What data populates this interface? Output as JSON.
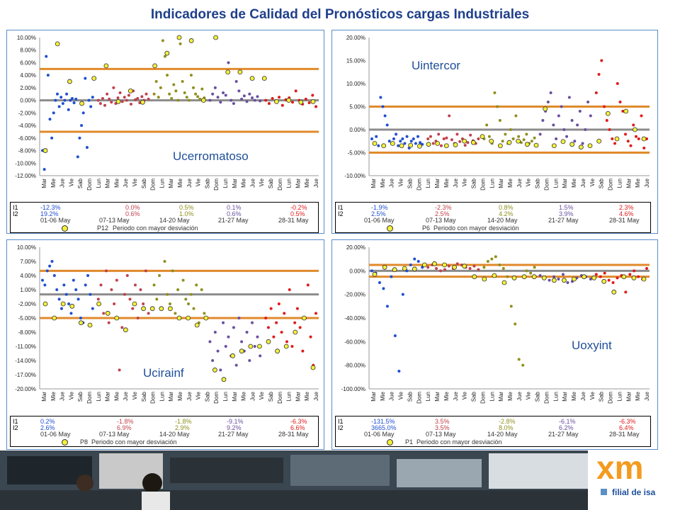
{
  "title": "Indicadores de Calidad del Pronósticos cargas Industriales",
  "period_note": "Periodo con mayor desviación",
  "brand": {
    "logo_text": "xm",
    "tagline": "filial de isa",
    "logo_color": "#f39b1f"
  },
  "colors": {
    "week1": "#1f4fd1",
    "week2": "#c0414c",
    "week3": "#8f8f1f",
    "week4": "#6a4fa0",
    "week5": "#e01b1b",
    "band": "#e08a2b",
    "zero": "#8c8c8c",
    "period_marker": "#f4f03a"
  },
  "weeks": [
    "01-06 May",
    "07-13 May",
    "14-20 May",
    "21-27 May",
    "28-31 May"
  ],
  "x_tick_labels": [
    "Mar",
    "Mie",
    "Jue",
    "Vie",
    "Sab",
    "Dom",
    "Lun",
    "Mar",
    "Mie",
    "Jue",
    "Vie",
    "Sab",
    "Dom",
    "Lun",
    "Mar",
    "Mie",
    "Jue",
    "Vie",
    "Sab",
    "Dom",
    "Lun",
    "Mar",
    "Mie",
    "Jue",
    "Vie",
    "Sab",
    "Dom",
    "Lun",
    "Mar",
    "Mie",
    "Jue"
  ],
  "panels": [
    {
      "label": "Ucerromatoso",
      "period": "P12",
      "I1": [
        "-12.3%",
        "0.0%",
        "0.5%",
        "0.1%",
        "-0.2%"
      ],
      "I2": [
        "19.2%",
        "0.6%",
        "1.0%",
        "0.6%",
        "0.5%"
      ]
    },
    {
      "label": "Uintercor",
      "period": "P6",
      "I1": [
        "-1.9%",
        "-2.3%",
        "0.8%",
        "1.5%",
        "2.3%"
      ],
      "I2": [
        "2.5%",
        "2.5%",
        "4.2%",
        "3.9%",
        "4.6%"
      ]
    },
    {
      "label": "Ucirainf",
      "period": "P8",
      "I1": [
        "0.2%",
        "-1.8%",
        "-1.8%",
        "-9.1%",
        "-6.3%"
      ],
      "I2": [
        "2.6%",
        "6.9%",
        "2.9%",
        "9.2%",
        "6.6%"
      ]
    },
    {
      "label": "Uoxyint",
      "period": "P1",
      "I1": [
        "-131.5%",
        "3.5%",
        "-2.8%",
        "-6.1%",
        "-6.3%"
      ],
      "I2": [
        "3665.0%",
        "3.5%",
        "8.0%",
        "6.2%",
        "6.4%"
      ]
    }
  ],
  "chart_data": [
    {
      "type": "scatter",
      "title": "Ucerromatoso",
      "yticks": [
        "10.00%",
        "8.00%",
        "6.00%",
        "4.00%",
        "2.00%",
        "0.00%",
        "-2.00%",
        "-4.00%",
        "-6.00%",
        "-8.00%",
        "-10.00%",
        "-12.00%"
      ],
      "ylim": [
        -12,
        10
      ],
      "bands": [
        5,
        -5
      ],
      "series": [
        {
          "y": [
            -8,
            -11,
            7,
            4,
            -3,
            -6,
            -2,
            0,
            1,
            -1,
            0.5,
            -0.5,
            0,
            1,
            -1.5,
            0,
            0.3,
            -0.4,
            0.2,
            -9,
            -6,
            -4,
            -2,
            3.5,
            -7.5,
            0,
            -1,
            0.5
          ]
        },
        {
          "y": [
            0,
            -0.5,
            0.3,
            -0.8,
            1,
            0.2,
            -0.3,
            2,
            -0.5,
            0.4,
            1.2,
            -0.2,
            0.5,
            0,
            0.8,
            -0.6,
            1.5,
            0.1,
            0.3,
            -0.4,
            0.6,
            0,
            1,
            0.2
          ]
        },
        {
          "y": [
            1,
            3,
            0.5,
            2,
            9.5,
            7,
            4,
            1,
            0.3,
            2.5,
            1.5,
            0,
            9,
            3,
            1.2,
            0.5,
            0,
            4,
            2,
            1,
            0.6,
            0.2,
            1.8,
            0.4
          ]
        },
        {
          "y": [
            0,
            1,
            2,
            0.5,
            -0.3,
            1.2,
            0.8,
            6,
            0,
            -0.5,
            3,
            1.5,
            0.2,
            0.7,
            -0.2,
            1,
            0.4,
            0,
            0.6,
            -0.1
          ]
        },
        {
          "y": [
            0,
            -0.5,
            0.3,
            -0.2,
            0.5,
            -0.8,
            0.1,
            0.4,
            -0.3,
            1.5,
            0,
            -0.6,
            0.2,
            -0.4,
            0.8,
            -1
          ]
        }
      ],
      "markers": [
        -8,
        9,
        3,
        -0.5,
        3.5,
        5.5,
        -0.2,
        1.5,
        -0.3,
        5.5,
        7.5,
        10,
        9.5,
        0,
        10,
        4.5,
        4.5,
        3.5,
        3.5,
        -0.2,
        0,
        -0.3,
        -0.2
      ]
    },
    {
      "type": "scatter",
      "title": "Uintercor",
      "yticks": [
        "20.00%",
        "15.00%",
        "10.00%",
        "5.00%",
        "0.00%",
        "-5.00%",
        "-10.00%"
      ],
      "ylim": [
        -10,
        20
      ],
      "bands": [
        5,
        -5
      ],
      "series": [
        {
          "y": [
            -2,
            -3,
            -1.5,
            -3.5,
            7,
            5,
            3,
            1,
            -2.5,
            -3,
            -2,
            -1,
            -3.5,
            -2.5,
            -2,
            -3,
            -1.5,
            -4,
            -2.5,
            -2,
            -3,
            -1.5,
            -2.8,
            -3.2
          ]
        },
        {
          "y": [
            -2,
            -1.5,
            -3,
            -2.5,
            -1,
            -3.5,
            -2,
            -1.8,
            3,
            -2.2,
            -3,
            -1,
            -2.6,
            -2,
            -3.4,
            -2.8,
            -1.2,
            -2.4,
            -3,
            -2
          ]
        },
        {
          "y": [
            -2,
            1,
            -1.5,
            -3,
            8,
            5,
            2,
            -2.5,
            -1,
            -3,
            0,
            -2,
            3,
            -1.5,
            -2.8,
            -2.2,
            -1,
            -3,
            -2.5,
            -1.8
          ]
        },
        {
          "y": [
            -1,
            2,
            4,
            6,
            8,
            1,
            -2,
            3,
            5,
            0,
            -1.5,
            7,
            2,
            -2.5,
            1,
            4,
            -3,
            0,
            6,
            3
          ]
        },
        {
          "y": [
            8,
            12,
            15,
            5,
            2,
            0,
            -2,
            -3,
            10,
            6,
            4,
            -1,
            -2.5,
            -3.5,
            1,
            -1.5,
            -2,
            3,
            -4,
            -2
          ]
        }
      ],
      "markers": [
        -3,
        -3.5,
        -3,
        -3.5,
        -3.4,
        -3.6,
        -3.2,
        -3,
        -3.5,
        -3.3,
        -2.5,
        -2.8,
        -1.5,
        -2.5,
        -3.5,
        -2.8,
        -2.5,
        -3.2,
        -3.4,
        4.5,
        -3.5,
        -2.6,
        -3.2,
        -3.8,
        -3.5,
        -2.5,
        3.5,
        -2,
        4,
        0,
        -2
      ]
    },
    {
      "type": "scatter",
      "title": "Ucirainf",
      "yticks": [
        "10.00%",
        "7.00%",
        "4.00%",
        "1.00%",
        "-2.00%",
        "-5.00%",
        "-8.00%",
        "-11.00%",
        "-14.00%",
        "-17.00%",
        "-20.00%"
      ],
      "ylim": [
        -20,
        10
      ],
      "bands": [
        5,
        -5
      ],
      "series": [
        {
          "y": [
            3,
            2,
            5,
            6,
            7,
            4,
            1,
            -1,
            -3,
            2,
            0,
            -2,
            -4,
            3,
            1,
            -1,
            -5,
            -6,
            2,
            4,
            0,
            -3
          ]
        },
        {
          "y": [
            -1,
            2,
            -4,
            5,
            -6,
            1,
            -2,
            3,
            -16,
            -7,
            0,
            4,
            -1,
            -3,
            2,
            -5,
            1,
            -2,
            5,
            -4
          ]
        },
        {
          "y": [
            2,
            -1,
            4,
            -3,
            7,
            0,
            -2,
            5,
            -4,
            1,
            -5,
            3,
            -1,
            -2,
            0,
            -3,
            2,
            -6,
            1,
            -4
          ]
        },
        {
          "y": [
            -10,
            -14,
            -8,
            -12,
            -16,
            -6,
            -11,
            -9,
            -13,
            -7,
            -15,
            -5,
            -10,
            -12,
            -8,
            -14,
            -6,
            -11,
            -9,
            -13
          ]
        },
        {
          "y": [
            -5,
            -7,
            -3,
            -9,
            -6,
            -2,
            -8,
            -4,
            -10,
            1,
            -11,
            -6,
            -3,
            -7,
            -12,
            -5,
            2,
            -9,
            -15,
            -4
          ]
        }
      ],
      "markers": [
        -2,
        -5,
        -2,
        -2.5,
        -6,
        -6.5,
        -2,
        -4,
        -5,
        -7.5,
        -2,
        -3,
        -3,
        -3,
        -3,
        -5,
        -5,
        -6.5,
        -5,
        -16,
        -18,
        -13,
        -12,
        -11,
        -11,
        -10,
        -12,
        -11,
        -8,
        -5,
        -15.5
      ]
    },
    {
      "type": "scatter",
      "title": "Uoxyint",
      "yticks": [
        "20.00%",
        "0.00%",
        "-20.00%",
        "-40.00%",
        "-60.00%",
        "-80.00%",
        "-100.00%"
      ],
      "ylim": [
        -100,
        20
      ],
      "bands": [
        5,
        -5
      ],
      "series": [
        {
          "y": [
            0,
            -2,
            -10,
            -15,
            -30,
            -5,
            -55,
            -85,
            -20,
            0,
            5,
            10,
            8,
            3
          ]
        },
        {
          "y": [
            3,
            5,
            2,
            0,
            1,
            4,
            2,
            6,
            5,
            3,
            2,
            4,
            1
          ]
        },
        {
          "y": [
            3,
            8,
            10,
            12,
            5,
            2,
            -5,
            -30,
            -45,
            -75,
            -80,
            0,
            -2,
            3
          ]
        },
        {
          "y": [
            -4,
            -6,
            -8,
            -5,
            -7,
            -3,
            -10,
            -9,
            -6,
            -4,
            -5,
            -7
          ]
        },
        {
          "y": [
            -3,
            -5,
            -2,
            -8,
            -10,
            -6,
            -4,
            -18,
            -3,
            0,
            -5,
            -7,
            2
          ]
        }
      ],
      "markers": [
        -3,
        3,
        1,
        2,
        1.5,
        5,
        6,
        5,
        3,
        4,
        -5,
        -7,
        -4,
        -10,
        -6,
        -5,
        -5,
        -6,
        -8,
        -8,
        -7,
        -5,
        -6,
        -9,
        -18,
        -5,
        -6,
        -7
      ]
    }
  ]
}
